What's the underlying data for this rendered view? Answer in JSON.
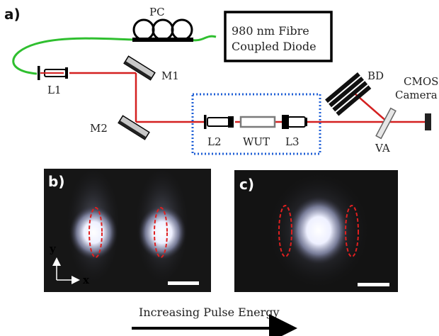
{
  "panel_labels": {
    "a": "a)",
    "b": "b)",
    "c": "c)"
  },
  "setup": {
    "pc": "PC",
    "diode_line1": "980 nm Fibre",
    "diode_line2": "Coupled Diode",
    "m1": "M1",
    "m2": "M2",
    "l1": "L1",
    "l2": "L2",
    "l3": "L3",
    "wut": "WUT",
    "bd": "BD",
    "camera_line1": "CMOS",
    "camera_line2": "Camera",
    "va": "VA"
  },
  "axes": {
    "y": "y",
    "x": "x"
  },
  "arrow_caption": "Increasing Pulse Energy",
  "colors": {
    "fiber": "#2fbf2f",
    "beam": "#d42020",
    "enclosure": "#1f5fd6",
    "ellipse": "#e02020",
    "image_bg": "#161616",
    "spot": "#eef0ff"
  }
}
